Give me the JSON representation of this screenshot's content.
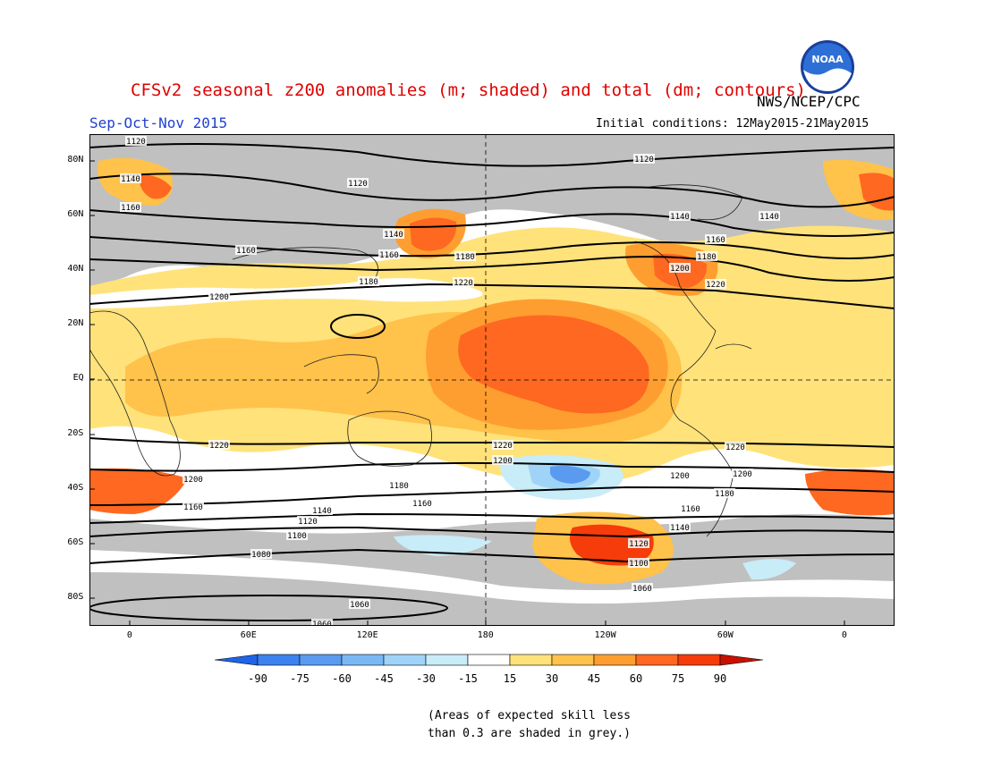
{
  "header": {
    "title": "CFSv2 seasonal z200 anomalies (m; shaded) and total (dm; contours)",
    "agency": "NWS/NCEP/CPC",
    "season": "Sep-Oct-Nov 2015",
    "initial_conditions": "Initial conditions: 12May2015-21May2015",
    "logo_text": "NOAA"
  },
  "axes": {
    "latitude_labels": [
      "80N",
      "60N",
      "40N",
      "20N",
      "EQ",
      "20S",
      "40S",
      "60S",
      "80S"
    ],
    "longitude_labels": [
      "0",
      "60E",
      "120E",
      "180",
      "120W",
      "60W",
      "0"
    ]
  },
  "contours": {
    "labels": [
      "1120",
      "1120",
      "1120",
      "1140",
      "1140",
      "1140",
      "1140",
      "1160",
      "1160",
      "1160",
      "1160",
      "1180",
      "1180",
      "1180",
      "1200",
      "1200",
      "1220",
      "1220",
      "1220",
      "1220",
      "1220",
      "1200",
      "1200",
      "1200",
      "1200",
      "1180",
      "1180",
      "1160",
      "1160",
      "1160",
      "1140",
      "1140",
      "1120",
      "1120",
      "1100",
      "1100",
      "1080",
      "1060",
      "1060",
      "1060"
    ]
  },
  "colorbar": {
    "ticks": [
      "-90",
      "-75",
      "-60",
      "-45",
      "-30",
      "-15",
      "15",
      "30",
      "45",
      "60",
      "75",
      "90"
    ],
    "colors": [
      "#1e64e6",
      "#3c82f0",
      "#5a9bf0",
      "#7ab8f5",
      "#9fd4f8",
      "#c8ecf8",
      "#ffffff",
      "#ffe27a",
      "#ffc24a",
      "#ff9e30",
      "#ff6820",
      "#f53c0a",
      "#c81000"
    ]
  },
  "map_colors": {
    "grey_low_skill": "#c0c0c0",
    "ocean_neutral": "#ffffff"
  },
  "footnote": {
    "line1": "(Areas of expected skill less",
    "line2": "than 0.3 are shaded in grey.)"
  }
}
